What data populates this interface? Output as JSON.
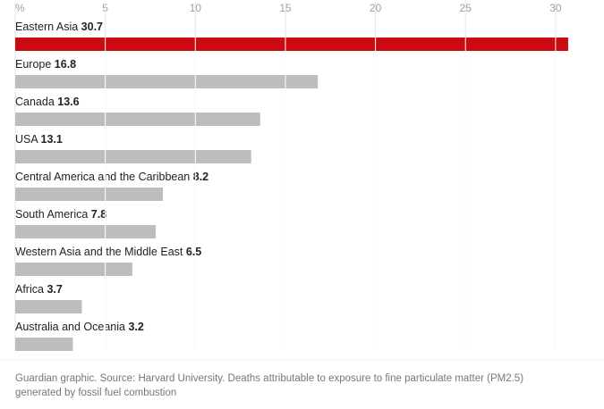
{
  "chart_data": {
    "type": "bar",
    "orientation": "horizontal",
    "categories": [
      "Eastern Asia",
      "Europe",
      "Canada",
      "USA",
      "Central America and the Caribbean",
      "South America",
      "Western Asia and the Middle East",
      "Africa",
      "Australia and Oceania"
    ],
    "values": [
      30.7,
      16.8,
      13.6,
      13.1,
      8.2,
      7.8,
      6.5,
      3.7,
      3.2
    ],
    "colors": [
      "#cc0a11",
      "#bdbdbd",
      "#bdbdbd",
      "#bdbdbd",
      "#bdbdbd",
      "#bdbdbd",
      "#bdbdbd",
      "#bdbdbd",
      "#bdbdbd"
    ],
    "xlim": [
      0,
      31
    ],
    "xticks": [
      {
        "value": 0,
        "label": "%"
      },
      5,
      10,
      15,
      20,
      25,
      30
    ],
    "grid": true,
    "note": [
      "Guardian graphic. Source: Harvard University. Deaths attributable to exposure to fine particulate matter (PM2.5)",
      "generated by fossil fuel combustion"
    ]
  }
}
